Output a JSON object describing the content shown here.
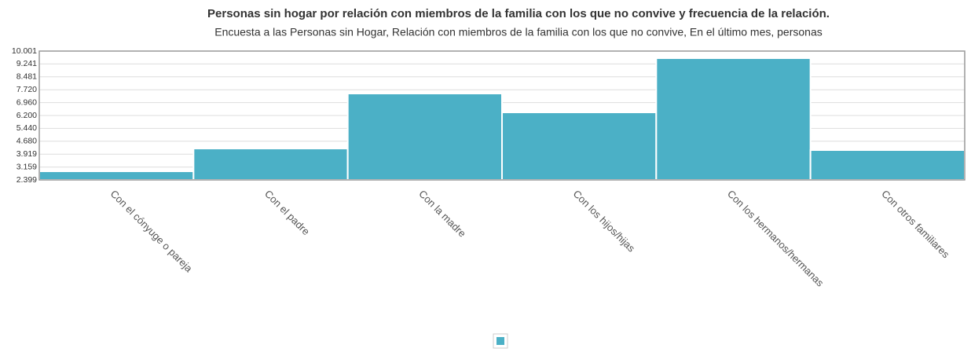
{
  "chart_data": {
    "type": "bar",
    "title": "Personas sin hogar por relación con miembros de la familia con los que no convive y frecuencia de la relación.",
    "subtitle": "Encuesta a las Personas sin Hogar, Relación con miembros de la familia con los que no convive, En el último mes, personas",
    "categories": [
      "Con el cónyuge o pareja",
      "Con el padre",
      "Con la madre",
      "Con los hijos/hijas",
      "Con los hermanos/hermanas",
      "Con otros familiares"
    ],
    "values": [
      2909,
      4253,
      7498,
      6385,
      9583,
      4160
    ],
    "color": "#4bb0c6",
    "ylim": [
      2399,
      10001
    ],
    "yticks": [
      {
        "value": 2399,
        "label": "2.399"
      },
      {
        "value": 3159,
        "label": "3.159"
      },
      {
        "value": 3919,
        "label": "3.919"
      },
      {
        "value": 4680,
        "label": "4.680"
      },
      {
        "value": 5440,
        "label": "5.440"
      },
      {
        "value": 6200,
        "label": "6.200"
      },
      {
        "value": 6960,
        "label": "6.960"
      },
      {
        "value": 7720,
        "label": "7.720"
      },
      {
        "value": 8481,
        "label": "8.481"
      },
      {
        "value": 9241,
        "label": "9.241"
      },
      {
        "value": 10001,
        "label": "10.001"
      }
    ],
    "grid": true
  }
}
